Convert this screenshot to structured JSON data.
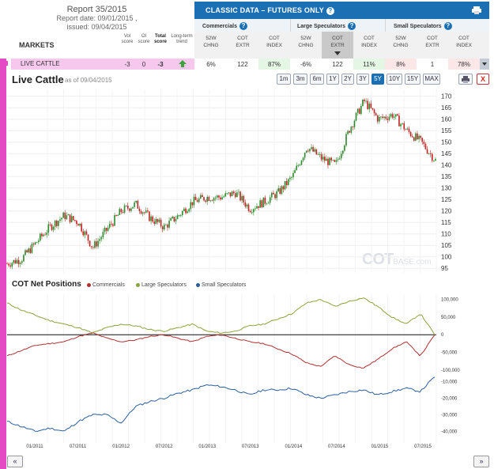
{
  "report": {
    "title": "Report 35/2015",
    "date": "Report date: 09/01/2015 ,",
    "issued": "issued: 09/04/2015"
  },
  "markets_label": "MARKETS",
  "score_headers": {
    "vol": "Vol\nscore",
    "oi": "OI\nscore",
    "total": "Total\nscore",
    "trend": "Long-term\ntrend"
  },
  "classic": {
    "title": "CLASSIC DATA – FUTURES ONLY",
    "help": "?"
  },
  "groups": [
    {
      "label": "Commercials"
    },
    {
      "label": "Large Speculators"
    },
    {
      "label": "Small Speculators"
    }
  ],
  "metrics": [
    "52W\nCHNG",
    "COT\nEXTR",
    "COT\nINDEX",
    "52W\nCHNG",
    "COT\nEXTR",
    "COT\nINDEX",
    "52W\nCHNG",
    "COT\nEXTR",
    "COT\nINDEX"
  ],
  "row": {
    "name": "LIVE CATTLE",
    "vol": "-3",
    "oi": "0",
    "total": "-3",
    "values": [
      "6%",
      "122",
      "87%",
      "-6%",
      "122",
      "11%",
      "8%",
      "1",
      "78%"
    ]
  },
  "colors": {
    "commercials": "#b03030",
    "large": "#8aa33a",
    "small": "#2a5f9e",
    "up": "#2a8a2a",
    "down": "#c42020",
    "accent": "#1b70b4"
  },
  "chart": {
    "title": "Live Cattle",
    "asof": "as of 09/04/2015",
    "ranges": [
      "1m",
      "3m",
      "6m",
      "1Y",
      "2Y",
      "3Y",
      "5Y",
      "10Y",
      "15Y",
      "MAX"
    ],
    "active_range": "5Y",
    "close": "X"
  },
  "watermark": {
    "main": "COT",
    "sub": "BASE.com"
  },
  "cot_title": "COT Net Positions",
  "legend": [
    "Commercials",
    "Large Speculators",
    "Small Speculators"
  ],
  "nav": {
    "prev": "«",
    "next": "»"
  },
  "chart_data": [
    {
      "type": "candlestick",
      "title": "Live Cattle",
      "ylim": [
        93,
        173
      ],
      "yticks": [
        95,
        100,
        105,
        110,
        115,
        120,
        125,
        130,
        135,
        140,
        145,
        150,
        155,
        160,
        165,
        170
      ],
      "x": [
        "2010-09",
        "2010-11",
        "2011-01",
        "2011-03",
        "2011-05",
        "2011-07",
        "2011-09",
        "2011-11",
        "2012-01",
        "2012-03",
        "2012-05",
        "2012-07",
        "2012-09",
        "2012-11",
        "2013-01",
        "2013-03",
        "2013-05",
        "2013-07",
        "2013-09",
        "2013-11",
        "2014-01",
        "2014-03",
        "2014-05",
        "2014-07",
        "2014-09",
        "2014-11",
        "2015-01",
        "2015-03",
        "2015-05",
        "2015-07",
        "2015-09"
      ],
      "close": [
        97,
        99,
        106,
        113,
        118,
        115,
        104,
        112,
        120,
        123,
        117,
        113,
        118,
        124,
        126,
        126,
        128,
        121,
        124,
        128,
        135,
        148,
        143,
        140,
        156,
        168,
        160,
        162,
        155,
        150,
        142
      ]
    },
    {
      "type": "line",
      "title": "COT Net Positions",
      "xticks": [
        "01/2011",
        "07/2011",
        "01/2012",
        "07/2012",
        "01/2013",
        "07/2013",
        "01/2014",
        "07/2014",
        "01/2015",
        "07/2015"
      ],
      "yticks_upper": [
        "100,000",
        "50,000",
        "0",
        "-50,000",
        "-100,000"
      ],
      "yticks_lower": [
        "-10,000",
        "-20,000",
        "-30,000",
        "-40,000"
      ],
      "ylim_upper": [
        -105000,
        115000
      ],
      "ylim_lower": [
        -45000,
        -5000
      ],
      "series": [
        {
          "name": "Commercials",
          "values": [
            -60000,
            -45000,
            -30000,
            -25000,
            -20000,
            -5000,
            5000,
            -10000,
            -20000,
            -15000,
            -5000,
            0,
            -10000,
            -20000,
            -5000,
            0,
            -10000,
            -20000,
            -25000,
            -40000,
            -55000,
            -80000,
            -90000,
            -60000,
            -85000,
            -95000,
            -70000,
            -40000,
            -20000,
            -60000,
            0
          ]
        },
        {
          "name": "Large Speculators",
          "values": [
            90000,
            70000,
            55000,
            40000,
            30000,
            20000,
            5000,
            20000,
            30000,
            25000,
            15000,
            10000,
            20000,
            30000,
            10000,
            5000,
            10000,
            25000,
            30000,
            45000,
            60000,
            90000,
            100000,
            80000,
            95000,
            105000,
            80000,
            50000,
            30000,
            60000,
            0
          ]
        },
        {
          "name": "Small Speculators",
          "values": [
            -34000,
            -37000,
            -40000,
            -38000,
            -40000,
            -34000,
            -30000,
            -30000,
            -35000,
            -25000,
            -22000,
            -20000,
            -17000,
            -15000,
            -12000,
            -13000,
            -15000,
            -18000,
            -15000,
            -15000,
            -14000,
            -18000,
            -20000,
            -18000,
            -16000,
            -15000,
            -18000,
            -16000,
            -14000,
            -16000,
            -7000
          ]
        }
      ]
    }
  ]
}
